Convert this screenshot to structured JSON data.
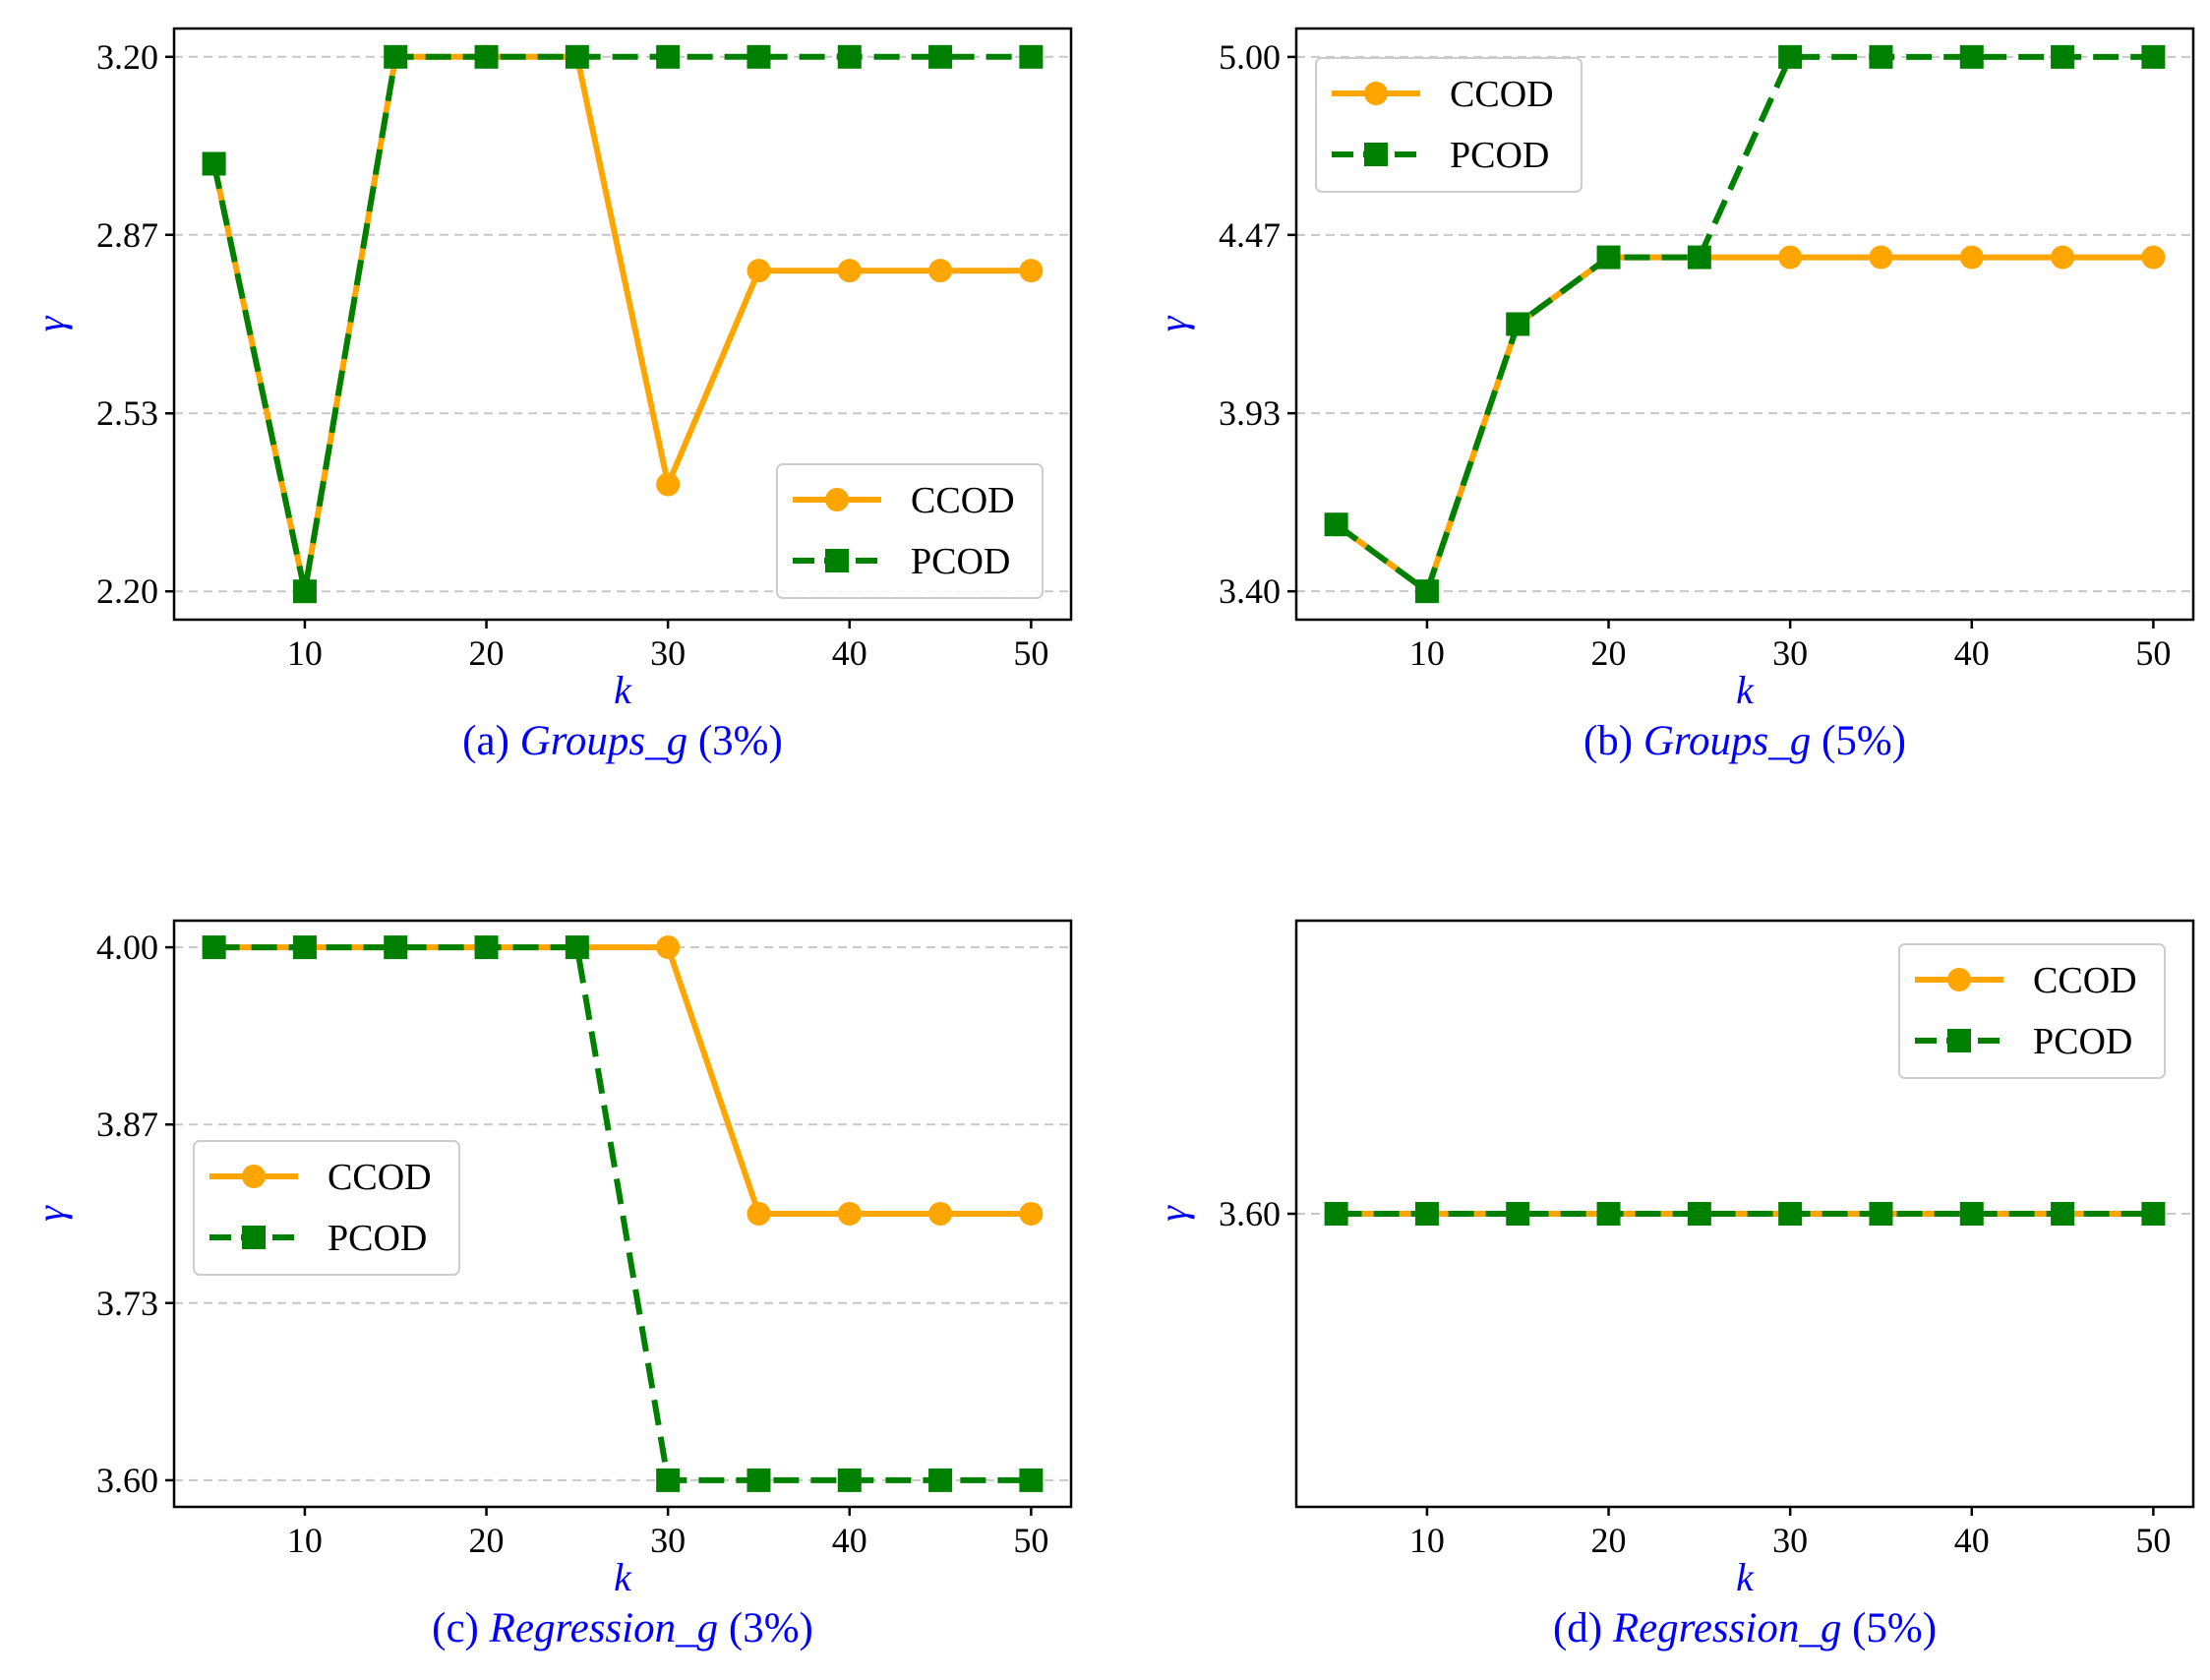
{
  "figure": {
    "colors": {
      "ccod": "#ffa500",
      "pcod": "#008000",
      "grid": "#c8c8c8",
      "axis_text": "#0000ff"
    }
  },
  "chart_data": [
    {
      "id": "a",
      "type": "line",
      "caption": {
        "prefix": "(a) ",
        "name": "Groups_g",
        "suffix": " (3%)"
      },
      "xlabel": "k",
      "ylabel": "γ",
      "xlim": [
        2.8,
        52.2
      ],
      "ylim": [
        2.147,
        3.253
      ],
      "xticks": [
        10,
        20,
        30,
        40,
        50
      ],
      "xtick_labels": [
        "10",
        "20",
        "30",
        "40",
        "50"
      ],
      "yticks": [
        2.2,
        2.533,
        2.867,
        3.2
      ],
      "ytick_labels": [
        "2.20",
        "2.53",
        "2.87",
        "3.20"
      ],
      "grid": "y-dashed",
      "legend_position": "lower-right",
      "x": [
        5,
        10,
        15,
        20,
        25,
        30,
        35,
        40,
        45,
        50
      ],
      "series": [
        {
          "name": "CCOD",
          "values": [
            3.0,
            2.2,
            3.2,
            3.2,
            3.2,
            2.4,
            2.8,
            2.8,
            2.8,
            2.8
          ]
        },
        {
          "name": "PCOD",
          "values": [
            3.0,
            2.2,
            3.2,
            3.2,
            3.2,
            3.2,
            3.2,
            3.2,
            3.2,
            3.2
          ]
        }
      ]
    },
    {
      "id": "b",
      "type": "line",
      "caption": {
        "prefix": "(b) ",
        "name": "Groups_g",
        "suffix": " (5%)"
      },
      "xlabel": "k",
      "ylabel": "γ",
      "xlim": [
        2.8,
        52.2
      ],
      "ylim": [
        3.315,
        5.085
      ],
      "xticks": [
        10,
        20,
        30,
        40,
        50
      ],
      "xtick_labels": [
        "10",
        "20",
        "30",
        "40",
        "50"
      ],
      "yticks": [
        3.4,
        3.933,
        4.467,
        5.0
      ],
      "ytick_labels": [
        "3.40",
        "3.93",
        "4.47",
        "5.00"
      ],
      "grid": "y-dashed",
      "legend_position": "upper-left",
      "x": [
        5,
        10,
        15,
        20,
        25,
        30,
        35,
        40,
        45,
        50
      ],
      "series": [
        {
          "name": "CCOD",
          "values": [
            3.6,
            3.4,
            4.2,
            4.4,
            4.4,
            4.4,
            4.4,
            4.4,
            4.4,
            4.4
          ]
        },
        {
          "name": "PCOD",
          "values": [
            3.6,
            3.4,
            4.2,
            4.4,
            4.4,
            5.0,
            5.0,
            5.0,
            5.0,
            5.0
          ]
        }
      ]
    },
    {
      "id": "c",
      "type": "line",
      "caption": {
        "prefix": "(c) ",
        "name": "Regression_g",
        "suffix": " (3%)"
      },
      "xlabel": "k",
      "ylabel": "γ",
      "xlim": [
        2.8,
        52.2
      ],
      "ylim": [
        3.58,
        4.02
      ],
      "xticks": [
        10,
        20,
        30,
        40,
        50
      ],
      "xtick_labels": [
        "10",
        "20",
        "30",
        "40",
        "50"
      ],
      "yticks": [
        3.6,
        3.733,
        3.867,
        4.0
      ],
      "ytick_labels": [
        "3.60",
        "3.73",
        "3.87",
        "4.00"
      ],
      "grid": "y-dashed",
      "legend_position": "center-left",
      "x": [
        5,
        10,
        15,
        20,
        25,
        30,
        35,
        40,
        45,
        50
      ],
      "series": [
        {
          "name": "CCOD",
          "values": [
            4.0,
            4.0,
            4.0,
            4.0,
            4.0,
            4.0,
            3.8,
            3.8,
            3.8,
            3.8
          ]
        },
        {
          "name": "PCOD",
          "values": [
            4.0,
            4.0,
            4.0,
            4.0,
            4.0,
            3.6,
            3.6,
            3.6,
            3.6,
            3.6
          ]
        }
      ]
    },
    {
      "id": "d",
      "type": "line",
      "caption": {
        "prefix": "(d) ",
        "name": "Regression_g",
        "suffix": " (5%)"
      },
      "xlabel": "k",
      "ylabel": "γ",
      "xlim": [
        2.8,
        52.2
      ],
      "ylim": [
        3.16,
        4.04
      ],
      "xticks": [
        10,
        20,
        30,
        40,
        50
      ],
      "xtick_labels": [
        "10",
        "20",
        "30",
        "40",
        "50"
      ],
      "yticks": [
        3.6
      ],
      "ytick_labels": [
        "3.60"
      ],
      "grid": "y-dashed",
      "legend_position": "upper-right",
      "x": [
        5,
        10,
        15,
        20,
        25,
        30,
        35,
        40,
        45,
        50
      ],
      "series": [
        {
          "name": "CCOD",
          "values": [
            3.6,
            3.6,
            3.6,
            3.6,
            3.6,
            3.6,
            3.6,
            3.6,
            3.6,
            3.6
          ]
        },
        {
          "name": "PCOD",
          "values": [
            3.6,
            3.6,
            3.6,
            3.6,
            3.6,
            3.6,
            3.6,
            3.6,
            3.6,
            3.6
          ]
        }
      ]
    }
  ]
}
